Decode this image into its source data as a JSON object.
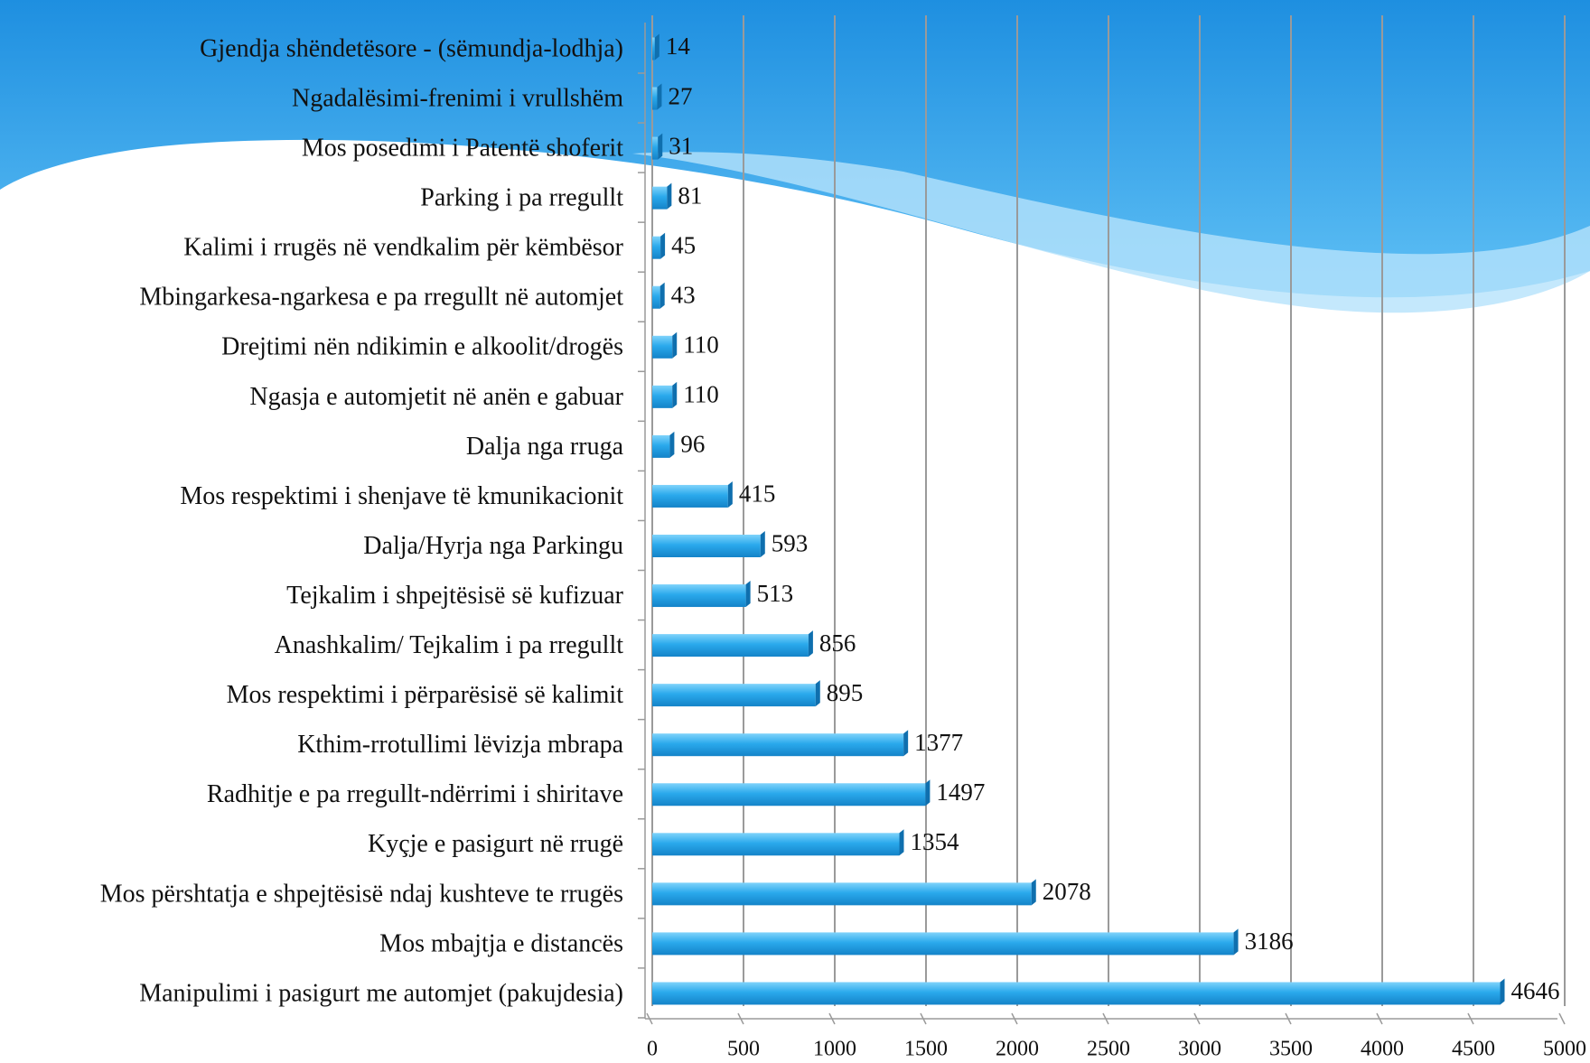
{
  "chart_data": {
    "type": "bar",
    "orientation": "horizontal",
    "categories": [
      "Gjendja shëndetësore - (sëmundja-lodhja)",
      "Ngadalësimi-frenimi i  vrullshëm",
      "Mos posedimi i Patentë shoferit",
      "Parking i pa rregullt",
      "Kalimi i rrugës në vendkalim për këmbësor",
      "Mbingarkesa-ngarkesa e pa rregullt në automjet",
      "Drejtimi nën ndikimin e alkoolit/drogës",
      "Ngasja e automjetit në anën e gabuar",
      "Dalja nga rruga",
      "Mos respektimi i shenjave të kmunikacionit",
      "Dalja/Hyrja nga Parkingu",
      "Tejkalim i shpejtësisë së kufizuar",
      "Anashkalim/ Tejkalim i pa rregullt",
      "Mos respektimi i përparësisë së kalimit",
      "Kthim-rrotullimi lëvizja mbrapa",
      "Radhitje e pa rregullt-ndërrimi i shiritave",
      "Kyçje e pasigurt në rrugë",
      "Mos përshtatja e shpejtësisë ndaj kushteve te rrugës",
      "Mos mbajtja e distancës",
      "Manipulimi i pasigurt me automjet (pakujdesia)"
    ],
    "values": [
      14,
      27,
      31,
      81,
      45,
      43,
      110,
      110,
      96,
      415,
      593,
      513,
      856,
      895,
      1377,
      1497,
      1354,
      2078,
      3186,
      4646
    ],
    "color": "#2aa9ec",
    "xlim": [
      0,
      5000
    ],
    "xticks": [
      0,
      500,
      1000,
      1500,
      2000,
      2500,
      3000,
      3500,
      4000,
      4500,
      5000
    ],
    "grid": true
  }
}
